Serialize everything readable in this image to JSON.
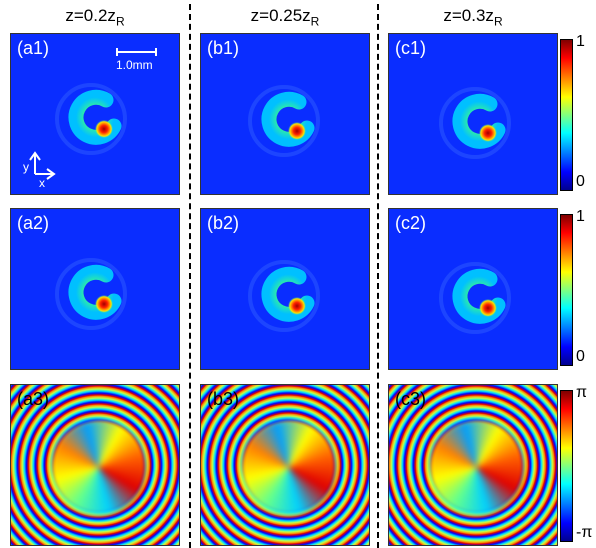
{
  "headers": [
    {
      "text": "z=0.2z",
      "subscript": "R"
    },
    {
      "text": "z=0.25z",
      "subscript": "R"
    },
    {
      "text": "z=0.3z",
      "subscript": "R"
    }
  ],
  "panels": [
    [
      "(a1)",
      "(b1)",
      "(c1)"
    ],
    [
      "(a2)",
      "(b2)",
      "(c2)"
    ],
    [
      "(a3)",
      "(b3)",
      "(c3)"
    ]
  ],
  "scale_bar": "1.0mm",
  "axes": {
    "y": "y",
    "x": "x"
  },
  "colorbars": [
    {
      "top": "1",
      "bottom": "0"
    },
    {
      "top": "1",
      "bottom": "0"
    },
    {
      "top": "π",
      "bottom": "-π"
    }
  ]
}
